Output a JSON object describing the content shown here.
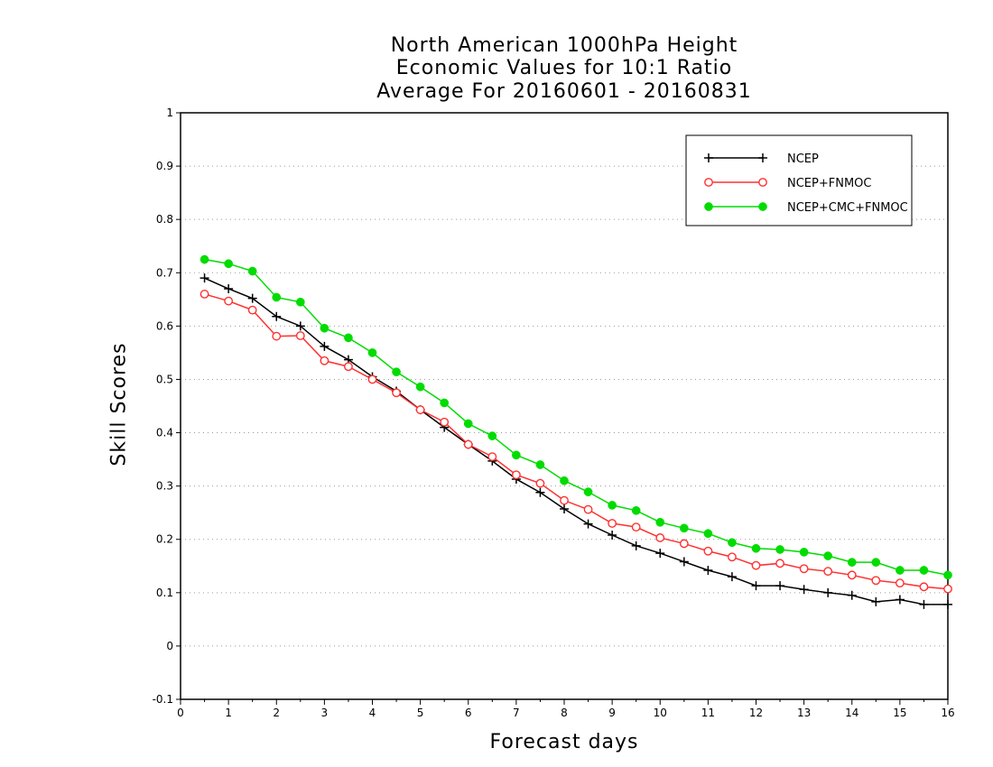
{
  "chart_data": {
    "type": "line",
    "title_lines": [
      "North American 1000hPa Height",
      "Economic Values for 10:1 Ratio",
      "Average For 20160601 - 20160831"
    ],
    "xlabel": "Forecast days",
    "ylabel": "Skill Scores",
    "xlim": [
      0,
      16
    ],
    "ylim": [
      -0.1,
      1
    ],
    "x_ticks": [
      "0",
      "1",
      "2",
      "3",
      "4",
      "5",
      "6",
      "7",
      "8",
      "9",
      "10",
      "11",
      "12",
      "13",
      "14",
      "15",
      "16"
    ],
    "y_ticks": [
      "-0.1",
      "0",
      "0.1",
      "0.2",
      "0.3",
      "0.4",
      "0.5",
      "0.6",
      "0.7",
      "0.8",
      "0.9",
      "1"
    ],
    "grid": "horizontal dotted",
    "legend_position": "top-right",
    "x": [
      0.5,
      1,
      1.5,
      2,
      2.5,
      3,
      3.5,
      4,
      4.5,
      5,
      5.5,
      6,
      6.5,
      7,
      7.5,
      8,
      8.5,
      9,
      9.5,
      10,
      10.5,
      11,
      11.5,
      12,
      12.5,
      13,
      13.5,
      14,
      14.5,
      15,
      15.5,
      16
    ],
    "series": [
      {
        "name": "NCEP",
        "color": "#000000",
        "marker": "plus",
        "values": [
          0.69,
          0.67,
          0.652,
          0.618,
          0.6,
          0.562,
          0.537,
          0.505,
          0.478,
          0.443,
          0.41,
          0.378,
          0.347,
          0.313,
          0.288,
          0.257,
          0.229,
          0.208,
          0.188,
          0.174,
          0.158,
          0.142,
          0.13,
          0.113,
          0.113,
          0.106,
          0.1,
          0.095,
          0.083,
          0.087,
          0.078,
          0.078
        ]
      },
      {
        "name": "NCEP+FNMOC",
        "color": "#ff3030",
        "marker": "open-circle",
        "values": [
          0.66,
          0.647,
          0.63,
          0.581,
          0.582,
          0.535,
          0.524,
          0.5,
          0.475,
          0.443,
          0.42,
          0.378,
          0.355,
          0.321,
          0.305,
          0.273,
          0.256,
          0.23,
          0.223,
          0.203,
          0.192,
          0.178,
          0.167,
          0.151,
          0.155,
          0.145,
          0.14,
          0.133,
          0.123,
          0.118,
          0.111,
          0.107
        ]
      },
      {
        "name": "NCEP+CMC+FNMOC",
        "color": "#00dc00",
        "marker": "filled-circle",
        "values": [
          0.725,
          0.717,
          0.703,
          0.654,
          0.645,
          0.596,
          0.578,
          0.55,
          0.514,
          0.486,
          0.456,
          0.417,
          0.394,
          0.358,
          0.34,
          0.31,
          0.289,
          0.264,
          0.254,
          0.232,
          0.221,
          0.211,
          0.194,
          0.183,
          0.181,
          0.176,
          0.169,
          0.157,
          0.157,
          0.142,
          0.142,
          0.133
        ]
      }
    ]
  }
}
